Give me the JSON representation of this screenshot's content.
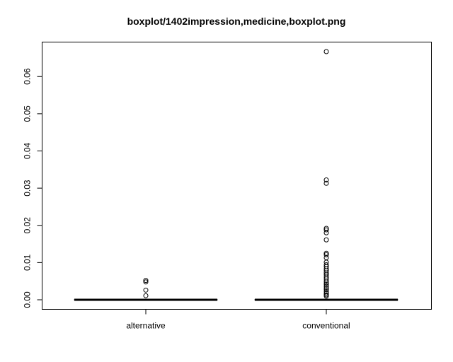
{
  "chart_data": {
    "type": "boxplot",
    "title": "boxplot/1402impression,medicine,boxplot.png",
    "xlabel": "",
    "ylabel": "",
    "categories": [
      "alternative",
      "conventional"
    ],
    "ylim": [
      -0.0025,
      0.069
    ],
    "yticks": [
      0.0,
      0.01,
      0.02,
      0.03,
      0.04,
      0.05,
      0.06
    ],
    "ytick_labels": [
      "0.00",
      "0.01",
      "0.02",
      "0.03",
      "0.04",
      "0.05",
      "0.06"
    ],
    "boxes": [
      {
        "name": "alternative",
        "min": 0.0,
        "q1": 0.0,
        "median": 0.0,
        "q3": 0.0,
        "max": 0.0,
        "outliers": [
          0.0011,
          0.0026,
          0.0048,
          0.0052
        ]
      },
      {
        "name": "conventional",
        "min": 0.0,
        "q1": 0.0,
        "median": 0.0,
        "q3": 0.0,
        "max": 0.0,
        "outliers": [
          0.0667,
          0.0322,
          0.0313,
          0.0192,
          0.0188,
          0.018,
          0.0161,
          0.0125,
          0.0121,
          0.0113,
          0.0101,
          0.0094,
          0.0089,
          0.0083,
          0.0078,
          0.0072,
          0.0067,
          0.0061,
          0.0056,
          0.005,
          0.0045,
          0.0041,
          0.0036,
          0.0031,
          0.0027,
          0.0022,
          0.0017,
          0.0013,
          0.001
        ]
      }
    ],
    "grid": false
  }
}
